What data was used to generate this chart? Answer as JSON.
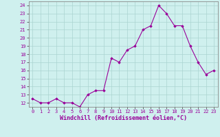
{
  "x": [
    0,
    1,
    2,
    3,
    4,
    5,
    6,
    7,
    8,
    9,
    10,
    11,
    12,
    13,
    14,
    15,
    16,
    17,
    18,
    19,
    20,
    21,
    22,
    23
  ],
  "y": [
    12.5,
    12.0,
    12.0,
    12.5,
    12.0,
    12.0,
    11.5,
    13.0,
    13.5,
    13.5,
    17.5,
    17.0,
    18.5,
    19.0,
    21.0,
    21.5,
    24.0,
    23.0,
    21.5,
    21.5,
    19.0,
    17.0,
    15.5,
    16.0
  ],
  "line_color": "#990099",
  "marker": "D",
  "marker_size": 1.8,
  "linewidth": 0.8,
  "xlabel": "Windchill (Refroidissement éolien,°C)",
  "xlim": [
    -0.5,
    23.5
  ],
  "ylim": [
    11.5,
    24.5
  ],
  "yticks": [
    12,
    13,
    14,
    15,
    16,
    17,
    18,
    19,
    20,
    21,
    22,
    23,
    24
  ],
  "xticks": [
    0,
    1,
    2,
    3,
    4,
    5,
    6,
    7,
    8,
    9,
    10,
    11,
    12,
    13,
    14,
    15,
    16,
    17,
    18,
    19,
    20,
    21,
    22,
    23
  ],
  "xtick_labels": [
    "0",
    "1",
    "2",
    "3",
    "4",
    "5",
    "6",
    "7",
    "8",
    "9",
    "10",
    "11",
    "12",
    "13",
    "14",
    "15",
    "16",
    "17",
    "18",
    "19",
    "20",
    "21",
    "22",
    "23"
  ],
  "bg_color": "#cff0ee",
  "grid_color": "#aad4d0",
  "tick_fontsize": 5.0,
  "xlabel_fontsize": 6.0,
  "spine_color": "#888888"
}
